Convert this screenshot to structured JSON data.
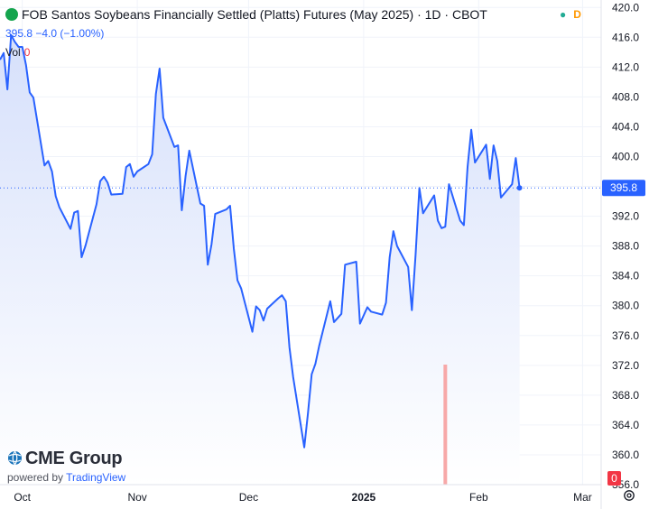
{
  "header": {
    "title": "FOB Santos Soybeans Financially Settled (Platts) Futures (May 2025) · 1D · CBOT",
    "status_dot_color": "#22ab94",
    "status_dot_glyph": "●",
    "data_delay_badge": "D",
    "last_price": "395.8",
    "change": "−4.0 (−1.00%)"
  },
  "volume": {
    "label": "Vol",
    "value": "0"
  },
  "branding": {
    "logo_text": "CME Group",
    "powered_prefix": "powered by",
    "powered_name": "TradingView"
  },
  "colors": {
    "line": "#2962ff",
    "area_top": "#d6e0fb",
    "area_bottom": "#ffffff",
    "volume_bar": "#f7a8a8",
    "price_badge": "#2962ff",
    "volume_badge": "#f23645",
    "grid": "#f0f3fa"
  },
  "chart_data": {
    "type": "area",
    "yticks": [
      "420.0",
      "416.0",
      "412.0",
      "408.0",
      "404.0",
      "400.0",
      "396.0",
      "392.0",
      "388.0",
      "384.0",
      "380.0",
      "376.0",
      "372.0",
      "368.0",
      "364.0",
      "360.0",
      "356.0"
    ],
    "ylim": [
      356,
      421
    ],
    "xticks": [
      {
        "label": "Oct",
        "date": "2024-10-01"
      },
      {
        "label": "Nov",
        "date": "2024-11-01"
      },
      {
        "label": "Dec",
        "date": "2024-12-01"
      },
      {
        "label": "2025",
        "date": "2025-01-01"
      },
      {
        "label": "Feb",
        "date": "2025-02-01"
      },
      {
        "label": "Mar",
        "date": "2025-03-01"
      }
    ],
    "xlim": [
      "2024-09-25",
      "2025-03-06"
    ],
    "last_price_label": "395.8",
    "last_price_line": 395.8,
    "volume_badge": "0",
    "volume_spike_date": "2025-01-23",
    "series": [
      {
        "points": [
          [
            "2024-09-25",
            413.0
          ],
          [
            "2024-09-26",
            413.9
          ],
          [
            "2024-09-27",
            409.0
          ],
          [
            "2024-09-28",
            416.3
          ],
          [
            "2024-09-29",
            415.4
          ],
          [
            "2024-09-30",
            414.7
          ],
          [
            "2024-10-01",
            414.7
          ],
          [
            "2024-10-02",
            412.3
          ],
          [
            "2024-10-03",
            408.6
          ],
          [
            "2024-10-04",
            407.9
          ],
          [
            "2024-10-07",
            398.8
          ],
          [
            "2024-10-08",
            399.4
          ],
          [
            "2024-10-09",
            398.0
          ],
          [
            "2024-10-10",
            394.7
          ],
          [
            "2024-10-11",
            393.2
          ],
          [
            "2024-10-14",
            390.3
          ],
          [
            "2024-10-15",
            392.5
          ],
          [
            "2024-10-16",
            392.7
          ],
          [
            "2024-10-17",
            386.5
          ],
          [
            "2024-10-18",
            388.0
          ],
          [
            "2024-10-21",
            393.6
          ],
          [
            "2024-10-22",
            396.7
          ],
          [
            "2024-10-23",
            397.3
          ],
          [
            "2024-10-24",
            396.5
          ],
          [
            "2024-10-25",
            394.9
          ],
          [
            "2024-10-28",
            395.0
          ],
          [
            "2024-10-29",
            398.6
          ],
          [
            "2024-10-30",
            399.0
          ],
          [
            "2024-10-31",
            397.3
          ],
          [
            "2024-11-01",
            398.0
          ],
          [
            "2024-11-04",
            399.0
          ],
          [
            "2024-11-05",
            400.3
          ],
          [
            "2024-11-06",
            408.4
          ],
          [
            "2024-11-07",
            411.8
          ],
          [
            "2024-11-08",
            405.2
          ],
          [
            "2024-11-11",
            401.3
          ],
          [
            "2024-11-12",
            401.5
          ],
          [
            "2024-11-13",
            392.8
          ],
          [
            "2024-11-14",
            397.4
          ],
          [
            "2024-11-15",
            400.8
          ],
          [
            "2024-11-18",
            393.7
          ],
          [
            "2024-11-19",
            393.4
          ],
          [
            "2024-11-20",
            385.5
          ],
          [
            "2024-11-21",
            388.2
          ],
          [
            "2024-11-22",
            392.3
          ],
          [
            "2024-11-25",
            392.9
          ],
          [
            "2024-11-26",
            393.4
          ],
          [
            "2024-11-27",
            387.7
          ],
          [
            "2024-11-28",
            383.4
          ],
          [
            "2024-11-29",
            382.3
          ],
          [
            "2024-12-02",
            376.5
          ],
          [
            "2024-12-03",
            379.9
          ],
          [
            "2024-12-04",
            379.4
          ],
          [
            "2024-12-05",
            378.0
          ],
          [
            "2024-12-06",
            379.6
          ],
          [
            "2024-12-09",
            381.0
          ],
          [
            "2024-12-10",
            381.4
          ],
          [
            "2024-12-11",
            380.6
          ],
          [
            "2024-12-12",
            374.4
          ],
          [
            "2024-12-13",
            370.4
          ],
          [
            "2024-12-16",
            361.0
          ],
          [
            "2024-12-17",
            365.6
          ],
          [
            "2024-12-18",
            370.8
          ],
          [
            "2024-12-19",
            372.2
          ],
          [
            "2024-12-20",
            374.6
          ],
          [
            "2024-12-23",
            380.6
          ],
          [
            "2024-12-24",
            377.8
          ],
          [
            "2024-12-26",
            378.9
          ],
          [
            "2024-12-27",
            385.5
          ],
          [
            "2024-12-30",
            385.9
          ],
          [
            "2024-12-31",
            377.6
          ],
          [
            "2025-01-02",
            379.8
          ],
          [
            "2025-01-03",
            379.2
          ],
          [
            "2025-01-06",
            378.8
          ],
          [
            "2025-01-07",
            380.4
          ],
          [
            "2025-01-08",
            386.5
          ],
          [
            "2025-01-09",
            390.0
          ],
          [
            "2025-01-10",
            388.0
          ],
          [
            "2025-01-13",
            385.2
          ],
          [
            "2025-01-14",
            379.4
          ],
          [
            "2025-01-15",
            386.8
          ],
          [
            "2025-01-16",
            395.8
          ],
          [
            "2025-01-17",
            392.4
          ],
          [
            "2025-01-20",
            394.8
          ],
          [
            "2025-01-21",
            391.4
          ],
          [
            "2025-01-22",
            390.4
          ],
          [
            "2025-01-23",
            390.6
          ],
          [
            "2025-01-24",
            396.3
          ],
          [
            "2025-01-27",
            391.4
          ],
          [
            "2025-01-28",
            390.8
          ],
          [
            "2025-01-29",
            398.6
          ],
          [
            "2025-01-30",
            403.6
          ],
          [
            "2025-01-31",
            399.2
          ],
          [
            "2025-02-03",
            401.6
          ],
          [
            "2025-02-04",
            397.0
          ],
          [
            "2025-02-05",
            401.5
          ],
          [
            "2025-02-06",
            399.4
          ],
          [
            "2025-02-07",
            394.5
          ],
          [
            "2025-02-10",
            396.3
          ],
          [
            "2025-02-11",
            399.8
          ],
          [
            "2025-02-12",
            395.8
          ]
        ]
      }
    ]
  }
}
